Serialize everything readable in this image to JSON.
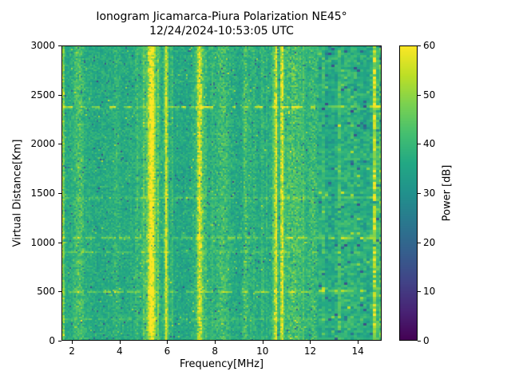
{
  "figure": {
    "background_color": "#ffffff",
    "text_color": "#000000"
  },
  "chart_data": {
    "type": "heatmap",
    "title": "Ionogram Jicamarca-Piura Polarization NE45°",
    "subtitle": "12/24/2024-10:53:05 UTC",
    "xlabel": "Frequency[MHz]",
    "ylabel": "Virtual Distance[Km]",
    "colorbar_label": "Power [dB]",
    "colormap": "viridis",
    "xlim": [
      1.56,
      15.0
    ],
    "ylim": [
      0,
      3000
    ],
    "clim": [
      0,
      60
    ],
    "xticks": [
      2,
      4,
      6,
      8,
      10,
      12,
      14
    ],
    "yticks": [
      0,
      500,
      1000,
      1500,
      2000,
      2500,
      3000
    ],
    "colorbar_ticks": [
      0,
      10,
      20,
      30,
      40,
      50,
      60
    ],
    "viridis_stops": [
      "#440154",
      "#482475",
      "#414487",
      "#355f8d",
      "#2a788e",
      "#21918c",
      "#22a884",
      "#44bf70",
      "#7ad151",
      "#bddf26",
      "#fde725"
    ],
    "background_noise_db": {
      "mean": 36.5,
      "std": 4
    },
    "coarse_texture_min_freq_mhz": 12.35,
    "rfi_stripes": [
      {
        "freq_mhz": 1.62,
        "width_mhz": 0.07,
        "power_db": 18,
        "patchy": false
      },
      {
        "freq_mhz": 2.32,
        "width_mhz": 0.32,
        "power_db": 7,
        "patchy": true
      },
      {
        "freq_mhz": 3.85,
        "width_mhz": 0.14,
        "power_db": 4,
        "patchy": true
      },
      {
        "freq_mhz": 4.72,
        "width_mhz": 0.1,
        "power_db": 5,
        "patchy": true
      },
      {
        "freq_mhz": 5.02,
        "width_mhz": 0.08,
        "power_db": 4,
        "patchy": true
      },
      {
        "freq_mhz": 5.34,
        "width_mhz": 0.2,
        "power_db": 23,
        "patchy": false
      },
      {
        "freq_mhz": 5.34,
        "width_mhz": 0.55,
        "power_db": 6,
        "patchy": true
      },
      {
        "freq_mhz": 5.63,
        "width_mhz": 0.07,
        "power_db": 6,
        "patchy": true
      },
      {
        "freq_mhz": 5.96,
        "width_mhz": 0.11,
        "power_db": 18,
        "patchy": false
      },
      {
        "freq_mhz": 6.18,
        "width_mhz": 0.07,
        "power_db": 5,
        "patchy": true
      },
      {
        "freq_mhz": 7.36,
        "width_mhz": 0.16,
        "power_db": 19,
        "patchy": false
      },
      {
        "freq_mhz": 7.36,
        "width_mhz": 0.45,
        "power_db": 5,
        "patchy": true
      },
      {
        "freq_mhz": 7.6,
        "width_mhz": 0.07,
        "power_db": 6,
        "patchy": true
      },
      {
        "freq_mhz": 8.32,
        "width_mhz": 0.5,
        "power_db": 6,
        "patchy": true
      },
      {
        "freq_mhz": 9.27,
        "width_mhz": 0.11,
        "power_db": 9,
        "patchy": true
      },
      {
        "freq_mhz": 9.47,
        "width_mhz": 0.08,
        "power_db": 5,
        "patchy": true
      },
      {
        "freq_mhz": 9.65,
        "width_mhz": 0.09,
        "power_db": 5,
        "patchy": true
      },
      {
        "freq_mhz": 10.56,
        "width_mhz": 0.1,
        "power_db": 22,
        "patchy": false
      },
      {
        "freq_mhz": 10.82,
        "width_mhz": 0.1,
        "power_db": 22,
        "patchy": false
      },
      {
        "freq_mhz": 11.28,
        "width_mhz": 0.55,
        "power_db": 8,
        "patchy": true
      },
      {
        "freq_mhz": 12.12,
        "width_mhz": 0.28,
        "power_db": 7,
        "patchy": true
      },
      {
        "freq_mhz": 14.72,
        "width_mhz": 0.15,
        "power_db": 17,
        "patchy": false
      },
      {
        "freq_mhz": 14.98,
        "width_mhz": 0.09,
        "power_db": 9,
        "patchy": true
      }
    ],
    "echo_lines": [
      {
        "range_km": 2370,
        "power_db": 15
      },
      {
        "range_km": 1450,
        "power_db": 5
      },
      {
        "range_km": 1050,
        "power_db": 10
      },
      {
        "range_km": 905,
        "power_db": 6
      },
      {
        "range_km": 500,
        "power_db": 9
      },
      {
        "range_km": 220,
        "power_db": 5
      }
    ]
  }
}
